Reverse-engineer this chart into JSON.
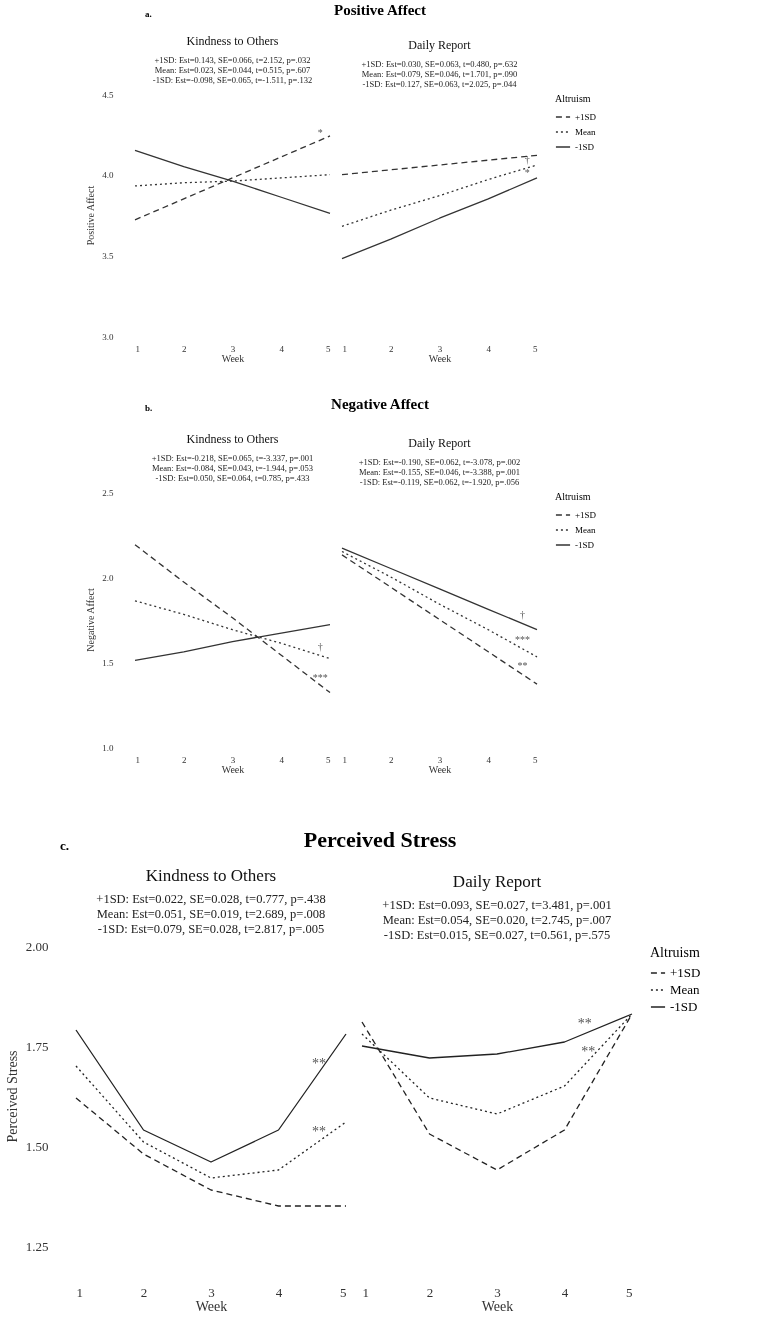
{
  "chart_data": [
    {
      "type": "line",
      "title": "Kindness to Others",
      "subtitle": "+1SD: Est=0.143, SE=0.066, t=2.152, p=.032\nMean: Est=0.023, SE=0.044, t=0.515, p=.607\n-1SD: Est=-0.098, SE=0.065, t=-1.511, p=.132",
      "xlabel": "Week",
      "ylabel": "Positive Affect",
      "annotations": [
        "a.",
        "Positive Affect",
        {
          "text": "*",
          "x": 4.8,
          "y": 4.21
        }
      ],
      "x": [
        1,
        2,
        3,
        4,
        5
      ],
      "xlim": [
        1,
        5
      ],
      "xticks": [
        1,
        2,
        3,
        4,
        5
      ],
      "ylim": [
        3.0,
        4.5
      ],
      "yticks": [
        {
          "value": 3,
          "label": "3.0"
        },
        3.5,
        {
          "value": 4,
          "label": "4.0"
        },
        4.5
      ],
      "series": [
        {
          "color": "#333333",
          "line_style": "dashed",
          "values": [
            3.72,
            3.85,
            3.98,
            4.11,
            4.24
          ]
        },
        {
          "color": "#333333",
          "line_style": "dotted",
          "values": [
            3.93,
            3.95,
            3.96,
            3.98,
            4.0
          ]
        },
        {
          "color": "#333333",
          "line_style": "solid",
          "values": [
            4.15,
            4.05,
            3.96,
            3.86,
            3.76
          ]
        }
      ]
    },
    {
      "type": "line",
      "title": "Daily Report",
      "subtitle": "+1SD: Est=0.030, SE=0.063, t=0.480, p=.632\nMean: Est=0.079, SE=0.046, t=1.701, p=.090\n-1SD: Est=0.127, SE=0.063, t=2.025, p=.044",
      "xlabel": "Week",
      "legend_title": "Altruism",
      "legend": "right",
      "tick_labels": "x",
      "annotations": [
        {
          "text": "†",
          "x": 4.8,
          "y": 4.04
        },
        {
          "text": "*",
          "x": 4.8,
          "y": 3.96
        }
      ],
      "x": [
        1,
        2,
        3,
        4,
        5
      ],
      "xlim": [
        1,
        5
      ],
      "xticks": [
        1,
        2,
        3,
        4,
        5
      ],
      "ylim": [
        3.0,
        4.5
      ],
      "series": [
        {
          "name": "+1SD",
          "color": "#333333",
          "line_style": "dashed",
          "values": [
            4.0,
            4.03,
            4.06,
            4.09,
            4.12
          ]
        },
        {
          "name": "Mean",
          "color": "#333333",
          "line_style": "dotted",
          "values": [
            3.68,
            3.78,
            3.87,
            3.97,
            4.06
          ]
        },
        {
          "name": "-1SD",
          "color": "#333333",
          "line_style": "solid",
          "values": [
            3.48,
            3.6,
            3.73,
            3.85,
            3.98
          ]
        }
      ]
    },
    {
      "type": "line",
      "title": "Kindness to Others",
      "subtitle": "+1SD: Est=-0.218, SE=0.065, t=-3.337, p=.001\nMean: Est=-0.084, SE=0.043, t=-1.944, p=.053\n-1SD: Est=0.050, SE=0.064, t=0.785, p=.433",
      "xlabel": "Week",
      "ylabel": "Negative Affect",
      "annotations": [
        "b.",
        "Negative Affect",
        {
          "text": "†",
          "x": 4.8,
          "y": 1.54
        },
        {
          "text": "***",
          "x": 4.8,
          "y": 1.36
        }
      ],
      "x": [
        1,
        2,
        3,
        4,
        5
      ],
      "xlim": [
        1,
        5
      ],
      "xticks": [
        1,
        2,
        3,
        4,
        5
      ],
      "ylim": [
        1.0,
        2.5
      ],
      "yticks": [
        {
          "value": 1,
          "label": "1.0"
        },
        1.5,
        {
          "value": 2,
          "label": "2.0"
        },
        2.5
      ],
      "series": [
        {
          "color": "#333333",
          "line_style": "dashed",
          "values": [
            2.19,
            1.97,
            1.76,
            1.54,
            1.32
          ]
        },
        {
          "color": "#333333",
          "line_style": "dotted",
          "values": [
            1.86,
            1.78,
            1.69,
            1.61,
            1.52
          ]
        },
        {
          "color": "#333333",
          "line_style": "solid",
          "values": [
            1.51,
            1.56,
            1.62,
            1.67,
            1.72
          ]
        }
      ]
    },
    {
      "type": "line",
      "title": "Daily Report",
      "subtitle": "+1SD: Est=-0.190, SE=0.062, t=-3.078, p=.002\nMean: Est=-0.155, SE=0.046, t=-3.388, p=.001\n-1SD: Est=-0.119, SE=0.062, t=-1.920, p=.056",
      "xlabel": "Week",
      "legend_title": "Altruism",
      "legend": "right",
      "tick_labels": "x",
      "annotations": [
        {
          "text": "†",
          "x": 4.7,
          "y": 1.73
        },
        {
          "text": "***",
          "x": 4.7,
          "y": 1.58
        },
        {
          "text": "**",
          "x": 4.7,
          "y": 1.43
        }
      ],
      "x": [
        1,
        2,
        3,
        4,
        5
      ],
      "xlim": [
        1,
        5
      ],
      "xticks": [
        1,
        2,
        3,
        4,
        5
      ],
      "ylim": [
        1.0,
        2.5
      ],
      "series": [
        {
          "name": "+1SD",
          "color": "#333333",
          "line_style": "dashed",
          "values": [
            2.13,
            1.94,
            1.75,
            1.56,
            1.37
          ]
        },
        {
          "name": "Mean",
          "color": "#333333",
          "line_style": "dotted",
          "values": [
            2.15,
            2.0,
            1.84,
            1.69,
            1.53
          ]
        },
        {
          "name": "-1SD",
          "color": "#333333",
          "line_style": "solid",
          "values": [
            2.17,
            2.05,
            1.93,
            1.81,
            1.69
          ]
        }
      ]
    },
    {
      "type": "line",
      "title": "Kindness to Others",
      "subtitle": "+1SD: Est=0.022, SE=0.028, t=0.777, p=.438\nMean: Est=0.051, SE=0.019, t=2.689, p=.008\n-1SD: Est=0.079, SE=0.028, t=2.817, p=.005",
      "xlabel": "Week",
      "ylabel": "Perceived Stress",
      "annotations": [
        "c.",
        "Perceived Stress",
        {
          "text": "**",
          "x": 4.6,
          "y": 1.68
        },
        {
          "text": "**",
          "x": 4.6,
          "y": 1.51
        }
      ],
      "x": [
        1,
        2,
        3,
        4,
        5
      ],
      "xlim": [
        1,
        5
      ],
      "xticks": [
        1,
        2,
        3,
        4,
        5
      ],
      "ylim": [
        1.25,
        2.0
      ],
      "yticks": [
        {
          "value": 1.25,
          "label": "1.25"
        },
        {
          "value": 1.5,
          "label": "1.50"
        },
        {
          "value": 1.75,
          "label": "1.75"
        },
        {
          "value": 2,
          "label": "2.00"
        }
      ],
      "series": [
        {
          "color": "#222222",
          "line_style": "dashed",
          "values": [
            1.62,
            1.48,
            1.39,
            1.35,
            1.35
          ]
        },
        {
          "color": "#222222",
          "line_style": "dotted",
          "values": [
            1.7,
            1.51,
            1.42,
            1.44,
            1.56
          ]
        },
        {
          "color": "#222222",
          "line_style": "solid",
          "values": [
            1.79,
            1.54,
            1.46,
            1.54,
            1.78
          ]
        }
      ]
    },
    {
      "type": "line",
      "title": "Daily Report",
      "subtitle": "+1SD: Est=0.093, SE=0.027, t=3.481, p=.001\nMean: Est=0.054, SE=0.020, t=2.745, p=.007\n-1SD: Est=0.015, SE=0.027, t=0.561, p=.575",
      "xlabel": "Week",
      "legend_title": "Altruism",
      "legend": "right",
      "tick_labels": "x",
      "annotations": [
        {
          "text": "**",
          "x": 4.3,
          "y": 1.78
        },
        {
          "text": "**",
          "x": 4.35,
          "y": 1.71
        }
      ],
      "x": [
        1,
        2,
        3,
        4,
        5
      ],
      "xlim": [
        1,
        5
      ],
      "xticks": [
        1,
        2,
        3,
        4,
        5
      ],
      "ylim": [
        1.25,
        2.0
      ],
      "series": [
        {
          "name": "+1SD",
          "color": "#222222",
          "line_style": "dashed",
          "values": [
            1.81,
            1.53,
            1.44,
            1.54,
            1.83
          ]
        },
        {
          "name": "Mean",
          "color": "#222222",
          "line_style": "dotted",
          "values": [
            1.78,
            1.62,
            1.58,
            1.65,
            1.83
          ]
        },
        {
          "name": "-1SD",
          "color": "#222222",
          "line_style": "solid",
          "values": [
            1.75,
            1.72,
            1.73,
            1.76,
            1.83
          ]
        }
      ]
    }
  ]
}
